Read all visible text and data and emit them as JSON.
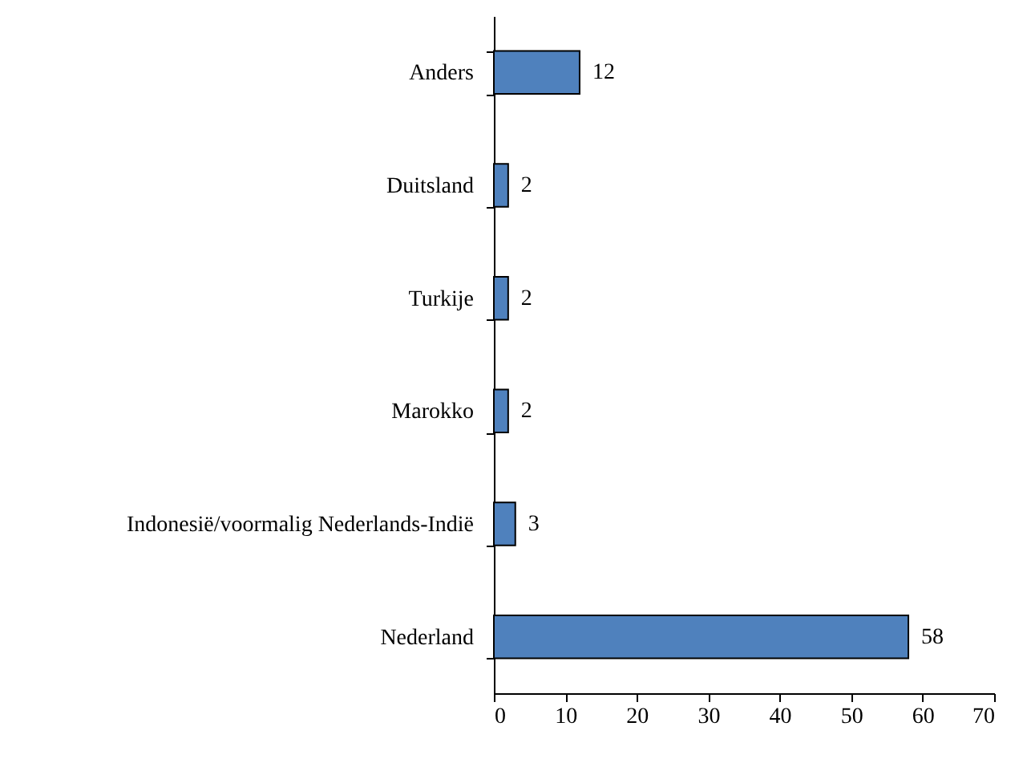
{
  "chart_data": {
    "type": "bar",
    "orientation": "horizontal",
    "categories": [
      "Anders",
      "Duitsland",
      "Turkije",
      "Marokko",
      "Indonesië/voormalig Nederlands-Indië",
      "Nederland"
    ],
    "values": [
      12,
      2,
      2,
      2,
      3,
      58
    ],
    "color": "#4f81bd",
    "xlim": [
      0,
      70
    ],
    "xticks": [
      0,
      10,
      20,
      30,
      40,
      50,
      60,
      70
    ],
    "data_labels": true
  }
}
